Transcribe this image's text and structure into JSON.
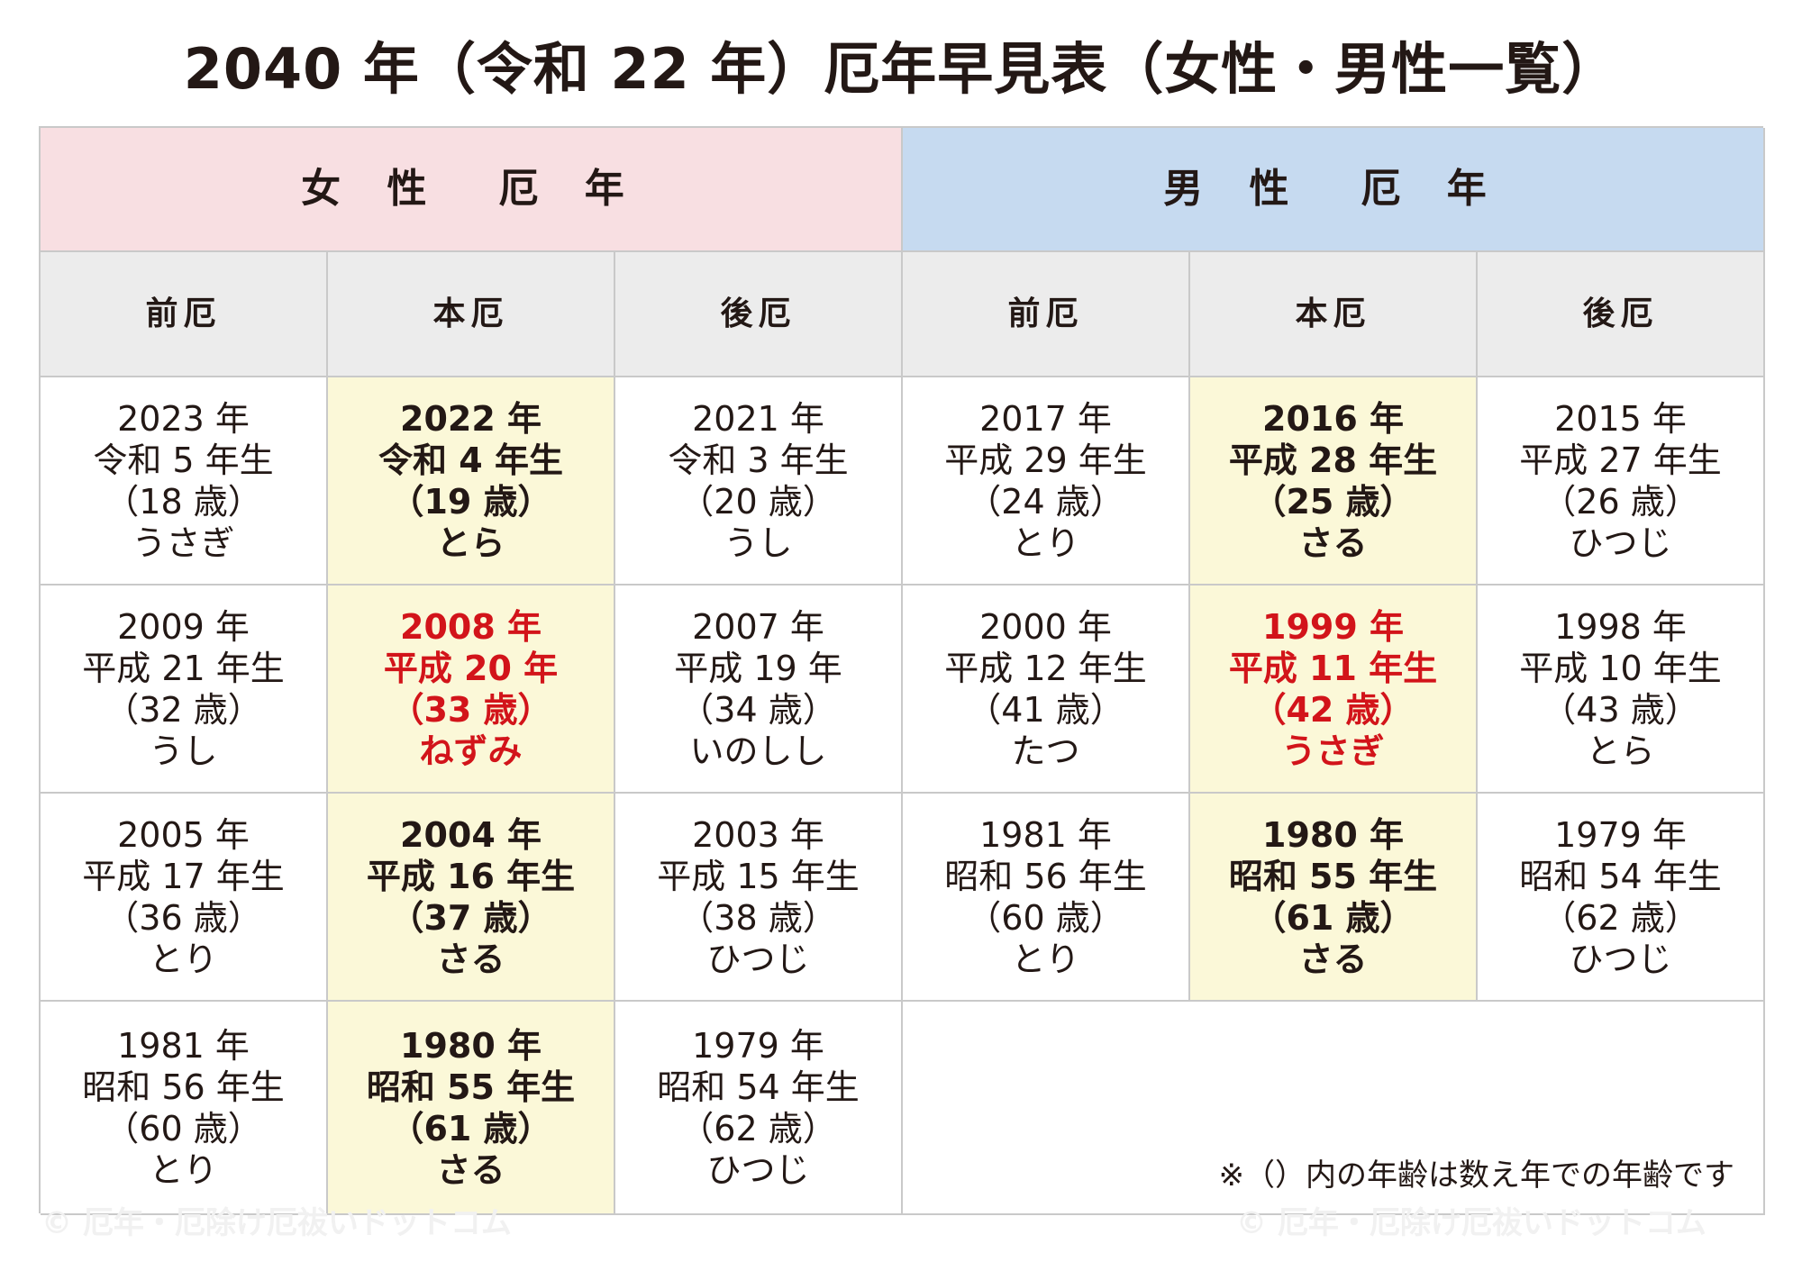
{
  "title": "2040 年（令和 22 年）厄年早見表（女性・男性一覧）",
  "headers": {
    "female": "女 性　厄 年",
    "male": "男 性　厄 年",
    "phases": [
      "前厄",
      "本厄",
      "後厄",
      "前厄",
      "本厄",
      "後厄"
    ]
  },
  "rows": [
    [
      {
        "year": "2023 年",
        "era": "令和 5 年生",
        "age": "（18 歳）",
        "zodiac": "うさぎ"
      },
      {
        "year": "2022 年",
        "era": "令和 4 年生",
        "age": "（19 歳）",
        "zodiac": "とら"
      },
      {
        "year": "2021 年",
        "era": "令和 3 年生",
        "age": "（20 歳）",
        "zodiac": "うし"
      },
      {
        "year": "2017 年",
        "era": "平成 29 年生",
        "age": "（24 歳）",
        "zodiac": "とり"
      },
      {
        "year": "2016 年",
        "era": "平成 28 年生",
        "age": "（25 歳）",
        "zodiac": "さる"
      },
      {
        "year": "2015 年",
        "era": "平成 27 年生",
        "age": "（26 歳）",
        "zodiac": "ひつじ"
      }
    ],
    [
      {
        "year": "2009 年",
        "era": "平成 21 年生",
        "age": "（32 歳）",
        "zodiac": "うし"
      },
      {
        "year": "2008 年",
        "era": "平成 20 年",
        "age": "（33 歳）",
        "zodiac": "ねずみ"
      },
      {
        "year": "2007 年",
        "era": "平成 19 年",
        "age": "（34 歳）",
        "zodiac": "いのしし"
      },
      {
        "year": "2000 年",
        "era": "平成 12 年生",
        "age": "（41 歳）",
        "zodiac": "たつ"
      },
      {
        "year": "1999 年",
        "era": "平成 11 年生",
        "age": "（42 歳）",
        "zodiac": "うさぎ"
      },
      {
        "year": "1998 年",
        "era": "平成 10 年生",
        "age": "（43 歳）",
        "zodiac": "とら"
      }
    ],
    [
      {
        "year": "2005 年",
        "era": "平成 17 年生",
        "age": "（36 歳）",
        "zodiac": "とり"
      },
      {
        "year": "2004 年",
        "era": "平成 16 年生",
        "age": "（37 歳）",
        "zodiac": "さる"
      },
      {
        "year": "2003 年",
        "era": "平成 15 年生",
        "age": "（38 歳）",
        "zodiac": "ひつじ"
      },
      {
        "year": "1981 年",
        "era": "昭和 56 年生",
        "age": "（60 歳）",
        "zodiac": "とり"
      },
      {
        "year": "1980 年",
        "era": "昭和 55 年生",
        "age": "（61 歳）",
        "zodiac": "さる"
      },
      {
        "year": "1979 年",
        "era": "昭和 54 年生",
        "age": "（62 歳）",
        "zodiac": "ひつじ"
      }
    ],
    [
      {
        "year": "1981 年",
        "era": "昭和 56 年生",
        "age": "（60 歳）",
        "zodiac": "とり"
      },
      {
        "year": "1980 年",
        "era": "昭和 55 年生",
        "age": "（61 歳）",
        "zodiac": "さる"
      },
      {
        "year": "1979 年",
        "era": "昭和 54 年生",
        "age": "（62 歳）",
        "zodiac": "ひつじ"
      }
    ]
  ],
  "note": "※（）内の年齢は数え年での年齢です",
  "watermark": "© 厄年・厄除け厄祓いドットコム",
  "colors": {
    "female_header_bg": "#f8dfe2",
    "male_header_bg": "#c6daf0",
    "phase_header_bg": "#ececec",
    "main_yaku_bg": "#fbf8d8",
    "taiyaku_red": "#d2141a"
  }
}
